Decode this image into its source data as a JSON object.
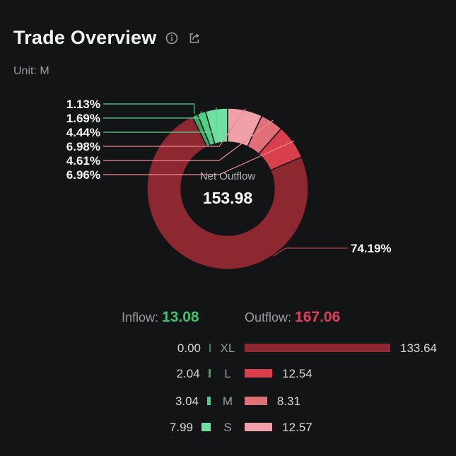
{
  "header": {
    "title": "Trade Overview",
    "info_icon": "info-icon",
    "share_icon": "share-icon"
  },
  "unit": "Unit: M",
  "center": {
    "label": "Net Outflow",
    "value": "153.98"
  },
  "flows": {
    "inflow_label": "Inflow:",
    "inflow_value": "13.08",
    "outflow_label": "Outflow:",
    "outflow_value": "167.06"
  },
  "colors": {
    "inflow_text": "#3fbf6f",
    "outflow_text": "#e0405a",
    "in_XL": "#2e8a50",
    "in_L": "#3aa862",
    "in_M": "#4fcf82",
    "in_S": "#6fe0a0",
    "out_XL": "#8e2830",
    "out_L": "#d8404e",
    "out_M": "#e07078",
    "out_S": "#f0a0a8"
  },
  "chart_data": {
    "type": "pie",
    "donut": true,
    "slices": [
      {
        "category": "XL",
        "side": "inflow",
        "value": 0.0,
        "percent_label": "",
        "color": "#2e8a50"
      },
      {
        "category": "L",
        "side": "inflow",
        "value": 2.04,
        "percent_label": "1.13%",
        "color": "#3aa862"
      },
      {
        "category": "M",
        "side": "inflow",
        "value": 3.04,
        "percent_label": "1.69%",
        "color": "#4fcf82"
      },
      {
        "category": "S",
        "side": "inflow",
        "value": 7.99,
        "percent_label": "4.44%",
        "color": "#6fe0a0"
      },
      {
        "category": "S",
        "side": "outflow",
        "value": 12.57,
        "percent_label": "6.98%",
        "color": "#f0a0a8"
      },
      {
        "category": "M",
        "side": "outflow",
        "value": 8.31,
        "percent_label": "4.61%",
        "color": "#e07078"
      },
      {
        "category": "L",
        "side": "outflow",
        "value": 12.54,
        "percent_label": "6.96%",
        "color": "#d8404e"
      },
      {
        "category": "XL",
        "side": "outflow",
        "value": 133.64,
        "percent_label": "74.19%",
        "color": "#8e2830"
      }
    ],
    "table": {
      "categories": [
        "XL",
        "L",
        "M",
        "S"
      ],
      "inflow": [
        "0.00",
        "2.04",
        "3.04",
        "7.99"
      ],
      "outflow": [
        "133.64",
        "12.54",
        "8.31",
        "12.57"
      ]
    }
  }
}
